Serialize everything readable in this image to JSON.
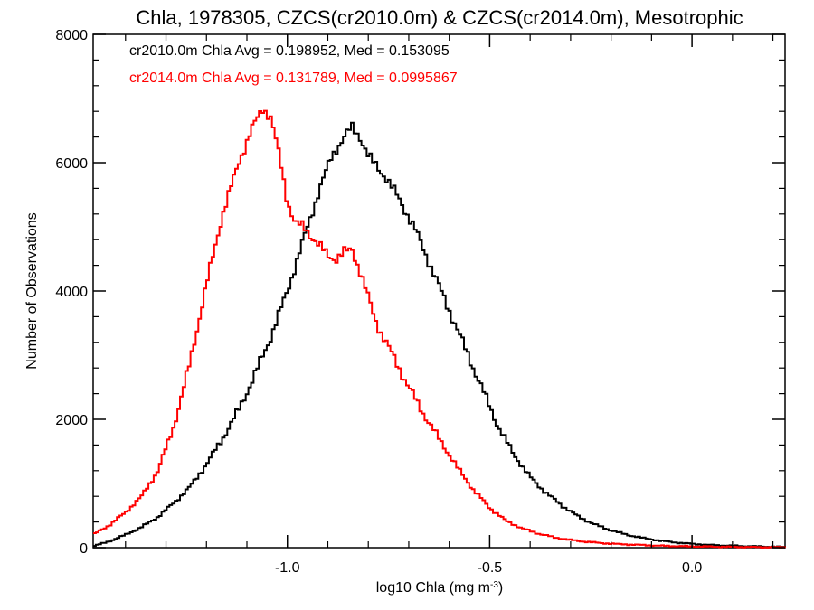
{
  "chart_data": {
    "type": "line",
    "title": "Chla, 1978305, CZCS(cr2010.0m) & CZCS(cr2014.0m), Mesotrophic",
    "xlabel_main": "log10 Chla (mg m",
    "xlabel_sup": "-3",
    "xlabel_close": ")",
    "ylabel": "Number of Observations",
    "xlim": [
      -1.48,
      0.23
    ],
    "ylim": [
      0,
      8000
    ],
    "x_ticks": [
      -1.0,
      -0.5,
      0.0
    ],
    "x_tick_labels": [
      "-1.0",
      "-0.5",
      "0.0"
    ],
    "y_ticks": [
      0,
      2000,
      4000,
      6000,
      8000
    ],
    "y_tick_labels": [
      "0",
      "2000",
      "4000",
      "6000",
      "8000"
    ],
    "grid": false,
    "legend_placement": "top-left",
    "series": [
      {
        "name": "cr2010.0m",
        "color": "#000000",
        "annotation": "cr2010.0m Chla Avg = 0.198952, Med = 0.153095",
        "x": [
          -1.48,
          -1.44,
          -1.4,
          -1.36,
          -1.32,
          -1.28,
          -1.24,
          -1.2,
          -1.16,
          -1.12,
          -1.08,
          -1.04,
          -1.0,
          -0.96,
          -0.92,
          -0.89,
          -0.86,
          -0.84,
          -0.82,
          -0.8,
          -0.76,
          -0.72,
          -0.68,
          -0.64,
          -0.6,
          -0.56,
          -0.52,
          -0.48,
          -0.44,
          -0.4,
          -0.36,
          -0.32,
          -0.28,
          -0.24,
          -0.2,
          -0.16,
          -0.12,
          -0.08,
          -0.04,
          0.0,
          0.05,
          0.1,
          0.15,
          0.23
        ],
        "y": [
          20,
          100,
          200,
          320,
          480,
          700,
          950,
          1300,
          1700,
          2150,
          2700,
          3300,
          4000,
          4800,
          5600,
          6100,
          6400,
          6550,
          6400,
          6100,
          5800,
          5400,
          4900,
          4300,
          3700,
          3100,
          2500,
          1900,
          1450,
          1100,
          850,
          650,
          480,
          360,
          270,
          200,
          150,
          110,
          80,
          60,
          40,
          30,
          20,
          10
        ]
      },
      {
        "name": "cr2014.0m",
        "color": "#ff0000",
        "annotation": "cr2014.0m Chla Avg = 0.131789, Med = 0.0995867",
        "x": [
          -1.48,
          -1.44,
          -1.4,
          -1.36,
          -1.32,
          -1.28,
          -1.24,
          -1.2,
          -1.16,
          -1.12,
          -1.09,
          -1.06,
          -1.04,
          -1.02,
          -1.0,
          -0.98,
          -0.96,
          -0.94,
          -0.92,
          -0.9,
          -0.88,
          -0.86,
          -0.84,
          -0.82,
          -0.8,
          -0.78,
          -0.74,
          -0.7,
          -0.66,
          -0.62,
          -0.58,
          -0.54,
          -0.5,
          -0.46,
          -0.42,
          -0.38,
          -0.34,
          -0.3,
          -0.26,
          -0.22,
          -0.18,
          -0.14,
          -0.1,
          -0.05,
          0.0,
          0.1,
          0.23
        ],
        "y": [
          200,
          350,
          550,
          800,
          1200,
          1900,
          2900,
          4100,
          5200,
          6000,
          6500,
          6850,
          6700,
          6100,
          5400,
          5050,
          5000,
          4850,
          4700,
          4550,
          4500,
          4600,
          4650,
          4300,
          3900,
          3500,
          3000,
          2500,
          2050,
          1650,
          1250,
          900,
          620,
          420,
          300,
          220,
          160,
          120,
          90,
          70,
          55,
          45,
          35,
          25,
          20,
          12,
          5
        ]
      }
    ]
  }
}
